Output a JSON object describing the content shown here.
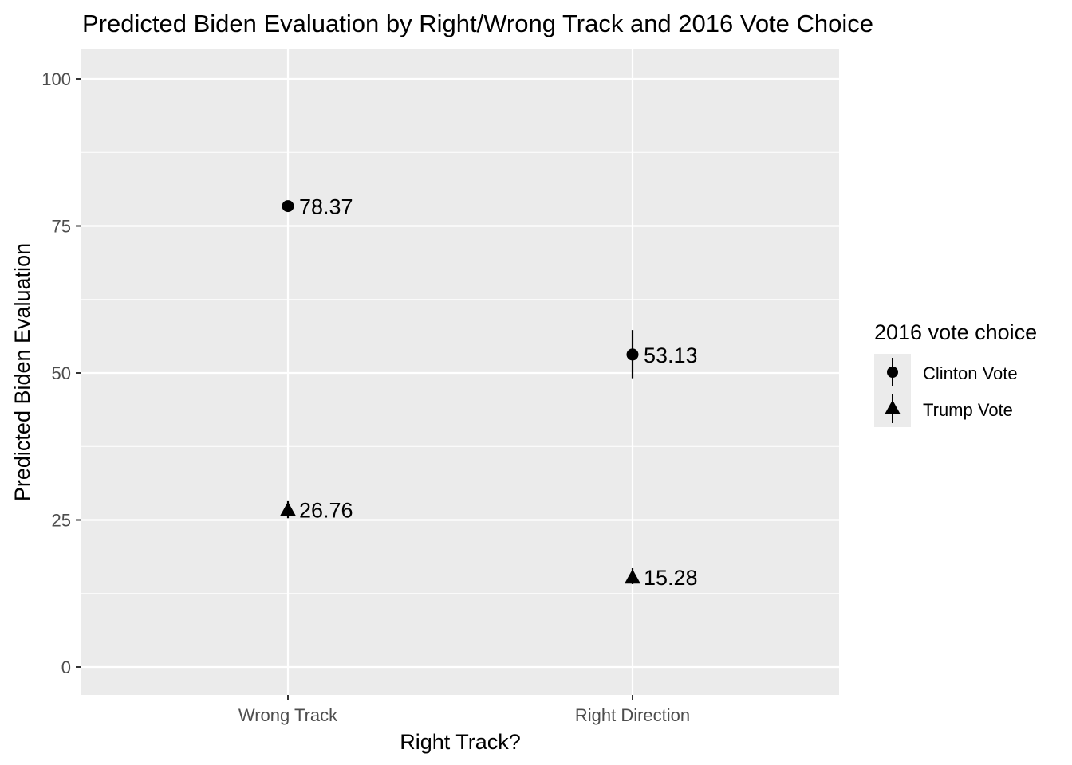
{
  "chart_data": {
    "type": "scatter",
    "title": "Predicted Biden Evaluation by Right/Wrong Track and 2016 Vote Choice",
    "xlabel": "Right Track?",
    "ylabel": "Predicted Biden Evaluation",
    "categories": [
      "Wrong Track",
      "Right Direction"
    ],
    "ylim": [
      -5,
      105
    ],
    "yticks": [
      0,
      25,
      50,
      75,
      100
    ],
    "ytick_labels": [
      "0",
      "25",
      "50",
      "75",
      "100"
    ],
    "grid": true,
    "legend": {
      "title": "2016 vote choice",
      "placement": "right",
      "entries": [
        "Clinton Vote",
        "Trump Vote"
      ]
    },
    "series": [
      {
        "name": "Clinton Vote",
        "shape": "circle",
        "values": [
          78.37,
          53.13
        ],
        "labels": [
          "78.37",
          "53.13"
        ],
        "lower": [
          77.5,
          49.1
        ],
        "upper": [
          79.2,
          57.3
        ]
      },
      {
        "name": "Trump Vote",
        "shape": "triangle",
        "values": [
          26.76,
          15.28
        ],
        "labels": [
          "26.76",
          "15.28"
        ],
        "lower": [
          25.3,
          14.1
        ],
        "upper": [
          28.2,
          16.8
        ]
      }
    ]
  }
}
